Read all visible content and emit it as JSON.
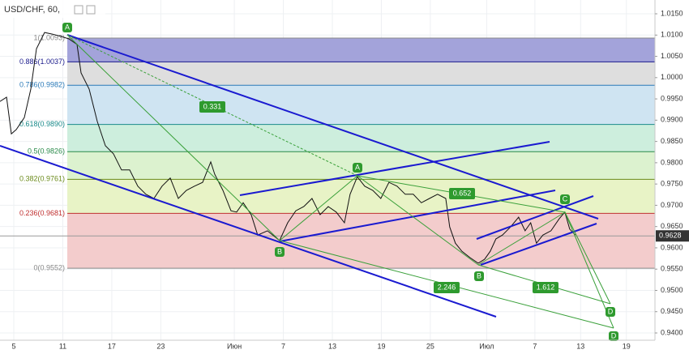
{
  "chart_data": {
    "type": "line",
    "title": "USD/CHF, 60,",
    "xlim": [
      3.31,
      83.5
    ],
    "ylim": [
      0.93829,
      1.01824
    ],
    "xticks": [
      5,
      11,
      17,
      23,
      {
        "value": 32,
        "label": "Июн"
      },
      {
        "value": 38,
        "label": "7"
      },
      {
        "value": 44,
        "label": "13"
      },
      {
        "value": 50,
        "label": "19"
      },
      {
        "value": 56,
        "label": "25"
      },
      {
        "value": 62.9,
        "label": "Июл"
      },
      {
        "value": 68.8,
        "label": "7"
      },
      {
        "value": 74.4,
        "label": "13"
      },
      {
        "value": 80,
        "label": "19"
      }
    ],
    "yticks": [
      {
        "value": 1.015,
        "label": "1.0150"
      },
      {
        "value": 1.01,
        "label": "1.0100"
      },
      {
        "value": 1.005,
        "label": "1.0050"
      },
      {
        "value": 1.0,
        "label": "1.0000"
      },
      {
        "value": 0.995,
        "label": "0.9950"
      },
      {
        "value": 0.99,
        "label": "0.9900"
      },
      {
        "value": 0.985,
        "label": "0.9850"
      },
      {
        "value": 0.98,
        "label": "0.9800"
      },
      {
        "value": 0.975,
        "label": "0.9750"
      },
      {
        "value": 0.97,
        "label": "0.9700"
      },
      {
        "value": 0.965,
        "label": "0.9650"
      },
      {
        "value": 0.96,
        "label": "0.9600"
      },
      {
        "value": 0.955,
        "label": "0.9550"
      },
      {
        "value": 0.95,
        "label": "0.9500"
      },
      {
        "value": 0.945,
        "label": "0.9450"
      },
      {
        "value": 0.94,
        "label": "0.9400"
      }
    ],
    "grid": true,
    "x": [
      3.31,
      4.11,
      4.7,
      5.3,
      6.29,
      7.08,
      7.78,
      8.77,
      9.76,
      10.75,
      11.75,
      12.74,
      13.23,
      14.23,
      15.22,
      16.21,
      17.2,
      18.19,
      19.19,
      20.18,
      21.17,
      22.16,
      23.15,
      24.15,
      25.14,
      26.13,
      27.12,
      28.12,
      29.11,
      29.6,
      30.6,
      31.59,
      32.28,
      33.08,
      34.07,
      34.86,
      36.05,
      37.54,
      38.53,
      39.52,
      40.51,
      41.51,
      42.5,
      43.49,
      44.48,
      45.48,
      46.17,
      47.06,
      47.96,
      48.95,
      49.94,
      50.93,
      51.92,
      52.92,
      53.91,
      54.9,
      55.89,
      56.88,
      57.88,
      58.37,
      59.07,
      59.86,
      60.85,
      61.85,
      62.64,
      63.33,
      64.03,
      64.82,
      65.81,
      66.81,
      67.6,
      68.29,
      68.99,
      69.78,
      70.77,
      71.77,
      72.46,
      73.06,
      73.75
    ],
    "series": [
      {
        "color": "#111111",
        "values": [
          0.9944,
          0.9954,
          0.9868,
          0.9878,
          0.9906,
          0.9973,
          1.0068,
          1.0106,
          1.0102,
          1.0097,
          1.0091,
          1.0078,
          1.0011,
          0.9973,
          0.9897,
          0.984,
          0.9821,
          0.9783,
          0.9783,
          0.9745,
          0.9726,
          0.9716,
          0.9745,
          0.9764,
          0.9716,
          0.9735,
          0.9745,
          0.9754,
          0.9802,
          0.9773,
          0.9735,
          0.9687,
          0.9684,
          0.9706,
          0.9678,
          0.963,
          0.964,
          0.9617,
          0.9659,
          0.9687,
          0.9697,
          0.9716,
          0.9678,
          0.9697,
          0.9684,
          0.9659,
          0.9726,
          0.9767,
          0.9745,
          0.9735,
          0.9716,
          0.9754,
          0.9745,
          0.9726,
          0.9726,
          0.9706,
          0.9716,
          0.9726,
          0.9716,
          0.9649,
          0.9611,
          0.9592,
          0.9577,
          0.9564,
          0.9573,
          0.9592,
          0.9621,
          0.963,
          0.9649,
          0.9672,
          0.964,
          0.9659,
          0.9611,
          0.963,
          0.964,
          0.9668,
          0.9684,
          0.9644,
          0.963
        ]
      }
    ],
    "fib_levels": [
      {
        "value": 1.0093,
        "label": "1(1.0093)",
        "color": "#888888",
        "fill": "#a3a3da"
      },
      {
        "value": 1.0037,
        "label": "0.886(1.0037)",
        "color": "#1a1a8c",
        "fill": "#dedede"
      },
      {
        "value": 0.9982,
        "label": "0.786(0.9982)",
        "color": "#2a7ab8",
        "fill": "#cfe4f2"
      },
      {
        "value": 0.989,
        "label": "0.618(0.9890)",
        "color": "#1a8a8a",
        "fill": "#cdeedd"
      },
      {
        "value": 0.9826,
        "label": "0.5(0.9826)",
        "color": "#2a8a4a",
        "fill": "#dcf2cf"
      },
      {
        "value": 0.9761,
        "label": "0.382(0.9761)",
        "color": "#6a8a1a",
        "fill": "#e8f3c6"
      },
      {
        "value": 0.9681,
        "label": "0.236(0.9681)",
        "color": "#c03030",
        "fill": "#f3cccc"
      },
      {
        "value": 0.9552,
        "label": "0(0.9552)",
        "color": "#888888"
      }
    ],
    "last_price": 0.9628,
    "pattern_points": [
      "A",
      "B",
      "A",
      "B",
      "C",
      "D",
      "D"
    ],
    "ratios": [
      0.331,
      0.652,
      2.246,
      1.612
    ]
  }
}
